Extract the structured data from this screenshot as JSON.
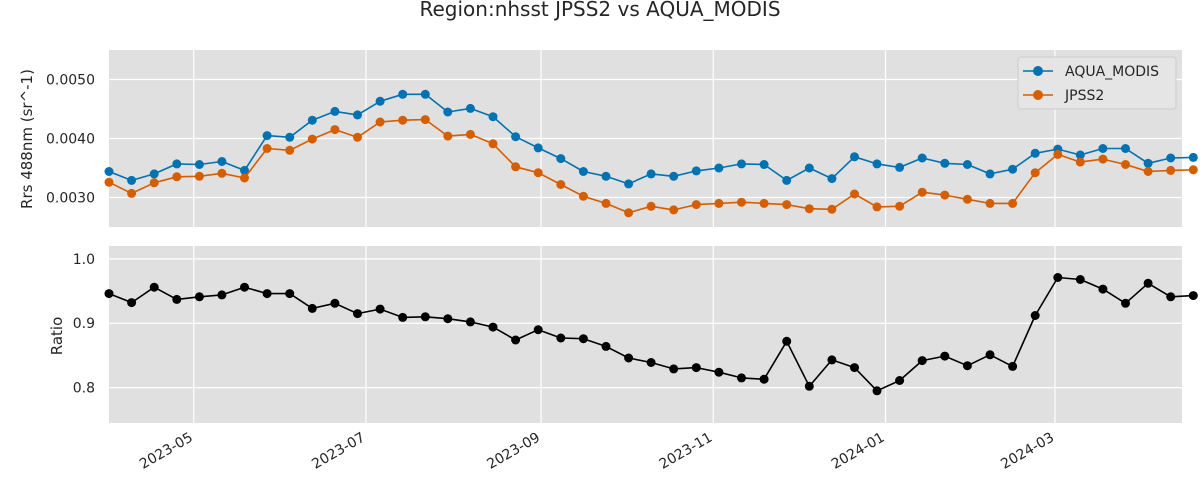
{
  "title": "Region:nhsst JPSS2 vs AQUA_MODIS",
  "colors": {
    "aqua": "#0072B2",
    "jpss2": "#D55E00",
    "ratio": "#000000",
    "panel_bg": "#E0E0E0",
    "grid": "#FFFFFF"
  },
  "chart_data": [
    {
      "type": "line",
      "panel": "top",
      "ylabel": "Rrs 488nm (sr^-1)",
      "ylim": [
        0.0025,
        0.0055
      ],
      "yticks": [
        0.003,
        0.004,
        0.005
      ],
      "ytick_labels": [
        "0.0030",
        "0.0040",
        "0.0050"
      ],
      "legend_position": "top-right",
      "series": [
        {
          "name": "AQUA_MODIS",
          "color": "#0072B2",
          "values": [
            0.00344,
            0.00329,
            0.0034,
            0.00357,
            0.00356,
            0.00361,
            0.00346,
            0.00405,
            0.00402,
            0.00431,
            0.00446,
            0.0044,
            0.00463,
            0.00475,
            0.00475,
            0.00445,
            0.00451,
            0.00437,
            0.00403,
            0.00384,
            0.00366,
            0.00344,
            0.00336,
            0.00323,
            0.0034,
            0.00336,
            0.00345,
            0.0035,
            0.00357,
            0.00356,
            0.00329,
            0.0035,
            0.00332,
            0.00369,
            0.00357,
            0.00351,
            0.00367,
            0.00358,
            0.00356,
            0.0034,
            0.00348,
            0.00375,
            0.00382,
            0.00372,
            0.00383,
            0.00383,
            0.00358,
            0.00367,
            0.00368
          ]
        },
        {
          "name": "JPSS2",
          "color": "#D55E00",
          "values": [
            0.00326,
            0.00307,
            0.00325,
            0.00335,
            0.00336,
            0.00341,
            0.00333,
            0.00383,
            0.0038,
            0.00399,
            0.00415,
            0.00402,
            0.00428,
            0.00431,
            0.00432,
            0.00404,
            0.00407,
            0.00391,
            0.00352,
            0.00342,
            0.00322,
            0.00302,
            0.0029,
            0.00274,
            0.00285,
            0.00279,
            0.00288,
            0.0029,
            0.00292,
            0.0029,
            0.00288,
            0.00281,
            0.0028,
            0.00306,
            0.00284,
            0.00285,
            0.00309,
            0.00304,
            0.00297,
            0.0029,
            0.0029,
            0.00342,
            0.00373,
            0.0036,
            0.00365,
            0.00356,
            0.00344,
            0.00346,
            0.00347
          ]
        }
      ]
    },
    {
      "type": "line",
      "panel": "bottom",
      "ylabel": "Ratio",
      "ylim": [
        0.745,
        1.02
      ],
      "yticks": [
        0.8,
        0.9,
        1.0
      ],
      "ytick_labels": [
        "0.8",
        "0.9",
        "1.0"
      ],
      "series": [
        {
          "color": "#000000",
          "values": [
            0.946,
            0.932,
            0.956,
            0.937,
            0.941,
            0.944,
            0.956,
            0.946,
            0.946,
            0.923,
            0.931,
            0.915,
            0.922,
            0.909,
            0.91,
            0.907,
            0.902,
            0.894,
            0.874,
            0.89,
            0.877,
            0.876,
            0.864,
            0.846,
            0.839,
            0.829,
            0.831,
            0.824,
            0.815,
            0.813,
            0.872,
            0.802,
            0.843,
            0.831,
            0.795,
            0.811,
            0.842,
            0.849,
            0.834,
            0.851,
            0.833,
            0.912,
            0.971,
            0.968,
            0.953,
            0.931,
            0.962,
            0.941,
            0.943
          ]
        }
      ]
    }
  ],
  "x_axis": {
    "start": "2023-04-01",
    "end": "2024-04-15",
    "dates": [
      "2023-04-01",
      "2023-04-09",
      "2023-04-17",
      "2023-04-25",
      "2023-05-03",
      "2023-05-11",
      "2023-05-19",
      "2023-05-27",
      "2023-06-04",
      "2023-06-12",
      "2023-06-20",
      "2023-06-28",
      "2023-07-06",
      "2023-07-14",
      "2023-07-22",
      "2023-07-30",
      "2023-08-07",
      "2023-08-15",
      "2023-08-23",
      "2023-08-31",
      "2023-09-08",
      "2023-09-16",
      "2023-09-24",
      "2023-10-02",
      "2023-10-10",
      "2023-10-18",
      "2023-10-26",
      "2023-11-03",
      "2023-11-11",
      "2023-11-19",
      "2023-11-27",
      "2023-12-05",
      "2023-12-13",
      "2023-12-21",
      "2023-12-29",
      "2024-01-06",
      "2024-01-14",
      "2024-01-22",
      "2024-01-30",
      "2024-02-07",
      "2024-02-15",
      "2024-02-23",
      "2024-03-02",
      "2024-03-10",
      "2024-03-18",
      "2024-03-26",
      "2024-04-03",
      "2024-04-11",
      "2024-04-19"
    ],
    "ticks": [
      "2023-05-01",
      "2023-07-01",
      "2023-09-01",
      "2023-11-01",
      "2024-01-01",
      "2024-03-01"
    ],
    "tick_labels": [
      "2023-05",
      "2023-07",
      "2023-09",
      "2023-11",
      "2024-01",
      "2024-03"
    ]
  }
}
